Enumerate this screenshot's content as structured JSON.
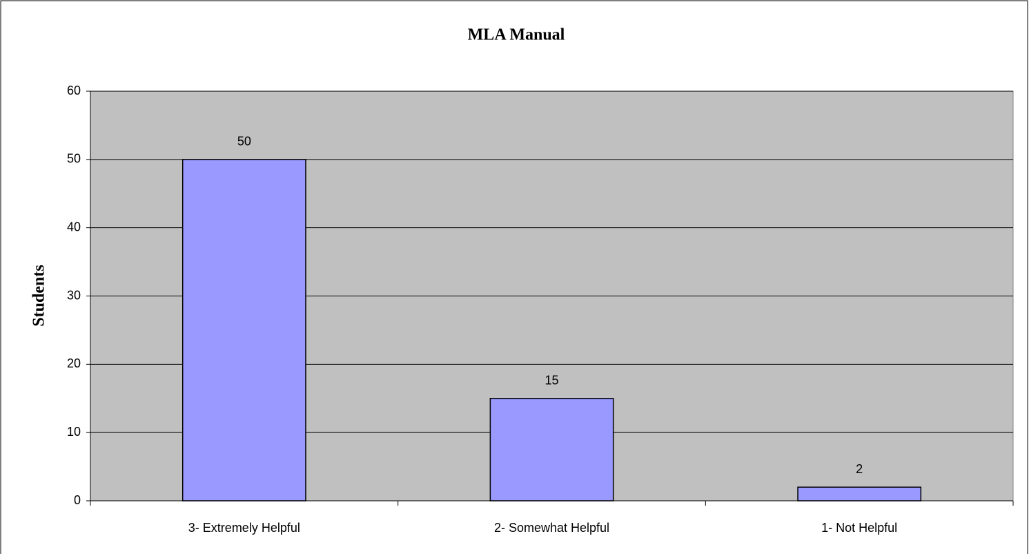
{
  "chart_data": {
    "type": "bar",
    "title": "MLA Manual",
    "y_label": "Students",
    "categories": [
      "3- Extremely Helpful",
      "2- Somewhat Helpful",
      "1- Not Helpful"
    ],
    "values": [
      50,
      15,
      2
    ],
    "color": "#9999ff",
    "ylim": [
      0,
      60
    ],
    "yticks": [
      0,
      10,
      20,
      30,
      40,
      50,
      60
    ],
    "grid": true
  }
}
